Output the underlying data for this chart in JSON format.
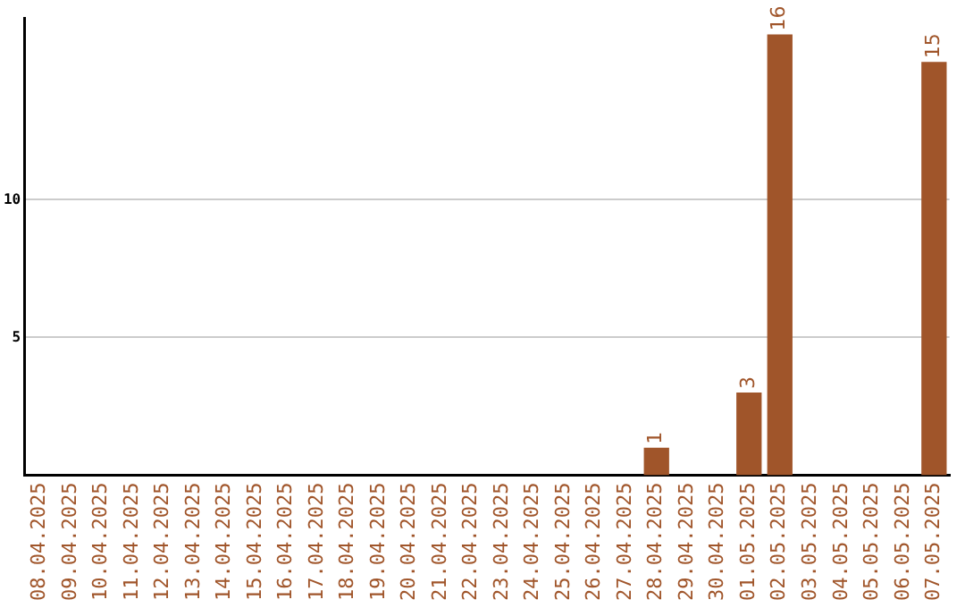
{
  "chart_data": {
    "type": "bar",
    "categories": [
      "08.04.2025",
      "09.04.2025",
      "10.04.2025",
      "11.04.2025",
      "12.04.2025",
      "13.04.2025",
      "14.04.2025",
      "15.04.2025",
      "16.04.2025",
      "17.04.2025",
      "18.04.2025",
      "19.04.2025",
      "20.04.2025",
      "21.04.2025",
      "22.04.2025",
      "23.04.2025",
      "24.04.2025",
      "25.04.2025",
      "26.04.2025",
      "27.04.2025",
      "28.04.2025",
      "29.04.2025",
      "30.04.2025",
      "01.05.2025",
      "02.05.2025",
      "03.05.2025",
      "04.05.2025",
      "05.05.2025",
      "06.05.2025",
      "07.05.2025"
    ],
    "values": [
      0,
      0,
      0,
      0,
      0,
      0,
      0,
      0,
      0,
      0,
      0,
      0,
      0,
      0,
      0,
      0,
      0,
      0,
      0,
      0,
      1,
      0,
      0,
      3,
      16,
      0,
      0,
      0,
      0,
      15
    ],
    "value_labels": [
      null,
      null,
      null,
      null,
      null,
      null,
      null,
      null,
      null,
      null,
      null,
      null,
      null,
      null,
      null,
      null,
      null,
      null,
      null,
      null,
      "1",
      null,
      null,
      "3",
      "16",
      null,
      null,
      null,
      null,
      "15"
    ],
    "color": "#a0552a",
    "ylim": [
      0,
      16.6
    ],
    "yticks": [
      5,
      10
    ],
    "grid": "y",
    "legend": false
  }
}
